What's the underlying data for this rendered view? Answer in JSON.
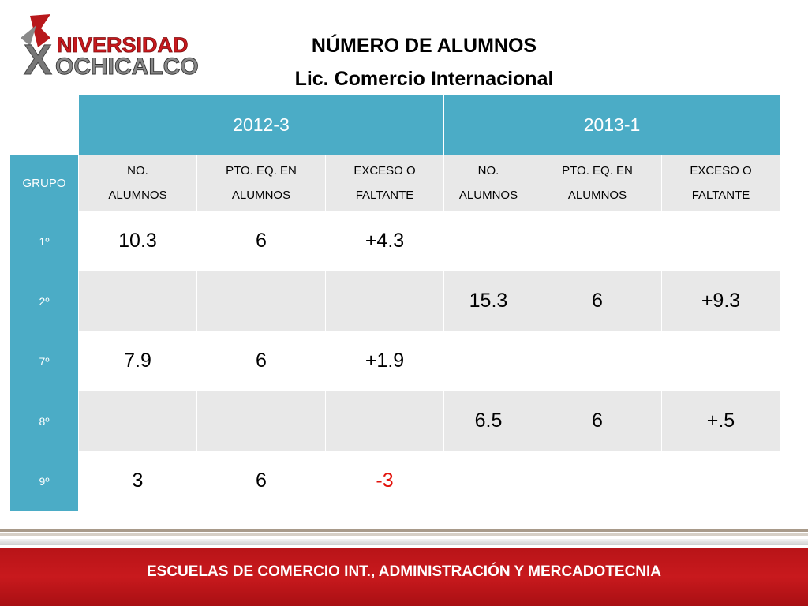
{
  "header": {
    "logo_text_1": "NIVERSIDAD",
    "logo_text_2": "OCHICALCO",
    "logo_letter": "X",
    "title": "NÚMERO DE ALUMNOS",
    "subtitle": "Lic. Comercio Internacional"
  },
  "table": {
    "periods": [
      "2012-3",
      "2013-1"
    ],
    "group_label": "GRUPO",
    "subheaders": [
      [
        "NO.",
        "ALUMNOS"
      ],
      [
        "PTO. EQ. EN",
        "ALUMNOS"
      ],
      [
        "EXCESO O",
        "FALTANTE"
      ],
      [
        "NO.",
        "ALUMNOS"
      ],
      [
        "PTO. EQ. EN",
        "ALUMNOS"
      ],
      [
        "EXCESO O",
        "FALTANTE"
      ]
    ],
    "rows": [
      {
        "group": "1º",
        "values": [
          "10.3",
          "6",
          "+4.3",
          "",
          "",
          ""
        ]
      },
      {
        "group": "2º",
        "values": [
          "",
          "",
          "",
          "15.3",
          "6",
          "+9.3"
        ]
      },
      {
        "group": "7º",
        "values": [
          "7.9",
          "6",
          "+1.9",
          "",
          "",
          ""
        ]
      },
      {
        "group": "8º",
        "values": [
          "",
          "",
          "",
          "6.5",
          "6",
          "+.5"
        ]
      },
      {
        "group": "9º",
        "values": [
          "3",
          "6",
          "-3",
          "",
          "",
          ""
        ]
      }
    ]
  },
  "footer": {
    "text": "ESCUELAS DE COMERCIO INT., ADMINISTRACIÓN Y MERCADOTECNIA"
  },
  "colors": {
    "header_blue": "#4bacc6",
    "row_gray": "#e8e8e8",
    "negative": "#e3120b",
    "footer_red": "#c8191d"
  }
}
